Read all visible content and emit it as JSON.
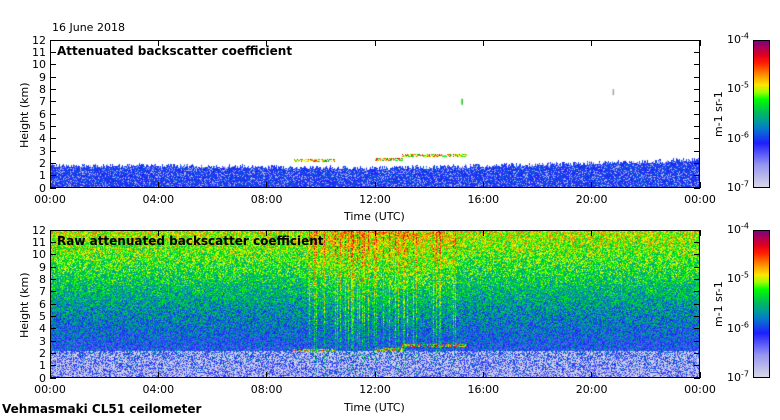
{
  "date_label": "16 June 2018",
  "footer": "Vehmasmaki CL51 ceilometer",
  "chart_data": [
    {
      "type": "heatmap",
      "title": "Attenuated backscatter coefficient",
      "xlabel": "Time (UTC)",
      "ylabel": "Height (km)",
      "xlim_hours": [
        0,
        24
      ],
      "ylim": [
        0,
        12
      ],
      "x_ticks": [
        "00:00",
        "04:00",
        "08:00",
        "12:00",
        "16:00",
        "20:00",
        "00:00"
      ],
      "y_ticks": [
        "0",
        "1",
        "2",
        "3",
        "4",
        "5",
        "6",
        "7",
        "8",
        "9",
        "10",
        "11",
        "12"
      ],
      "colorbar": {
        "label": "m-1 sr-1",
        "scale": "log",
        "range": [
          1e-07,
          0.0001
        ],
        "ticks": [
          {
            "base": "10",
            "exp": "-4"
          },
          {
            "base": "10",
            "exp": "-5"
          },
          {
            "base": "10",
            "exp": "-6"
          },
          {
            "base": "10",
            "exp": "-7"
          }
        ]
      },
      "features": {
        "boundary_layer_top_km": [
          [
            0,
            1.8
          ],
          [
            4,
            1.8
          ],
          [
            8,
            1.7
          ],
          [
            12,
            1.6
          ],
          [
            16,
            1.8
          ],
          [
            20,
            2.0
          ],
          [
            24,
            2.3
          ]
        ],
        "cloud_layers": [
          {
            "start_h": 9.0,
            "end_h": 10.5,
            "height_km": 2.2
          },
          {
            "start_h": 12.0,
            "end_h": 13.0,
            "height_km": 2.3
          },
          {
            "start_h": 13.0,
            "end_h": 15.4,
            "height_km": 2.6
          }
        ],
        "isolated_returns": [
          {
            "time_h": 15.2,
            "height_km": 7.0
          },
          {
            "time_h": 20.8,
            "height_km": 7.8
          }
        ]
      }
    },
    {
      "type": "heatmap",
      "title": "Raw attenuated backscatter coefficient",
      "xlabel": "Time (UTC)",
      "ylabel": "Height (km)",
      "xlim_hours": [
        0,
        24
      ],
      "ylim": [
        0,
        12
      ],
      "x_ticks": [
        "00:00",
        "04:00",
        "08:00",
        "12:00",
        "16:00",
        "20:00",
        "00:00"
      ],
      "y_ticks": [
        "0",
        "1",
        "2",
        "3",
        "4",
        "5",
        "6",
        "7",
        "8",
        "9",
        "10",
        "11",
        "12"
      ],
      "colorbar": {
        "label": "m-1 sr-1",
        "scale": "log",
        "range": [
          1e-07,
          0.0001
        ],
        "ticks": [
          {
            "base": "10",
            "exp": "-4"
          },
          {
            "base": "10",
            "exp": "-5"
          },
          {
            "base": "10",
            "exp": "-6"
          },
          {
            "base": "10",
            "exp": "-7"
          }
        ]
      },
      "features": {
        "noisy_signal_period_h": [
          9.5,
          15.0
        ],
        "cloud_layers": [
          {
            "start_h": 9.0,
            "end_h": 10.5,
            "height_km": 2.2
          },
          {
            "start_h": 12.0,
            "end_h": 13.0,
            "height_km": 2.3
          },
          {
            "start_h": 13.0,
            "end_h": 15.4,
            "height_km": 2.6
          }
        ]
      }
    }
  ]
}
